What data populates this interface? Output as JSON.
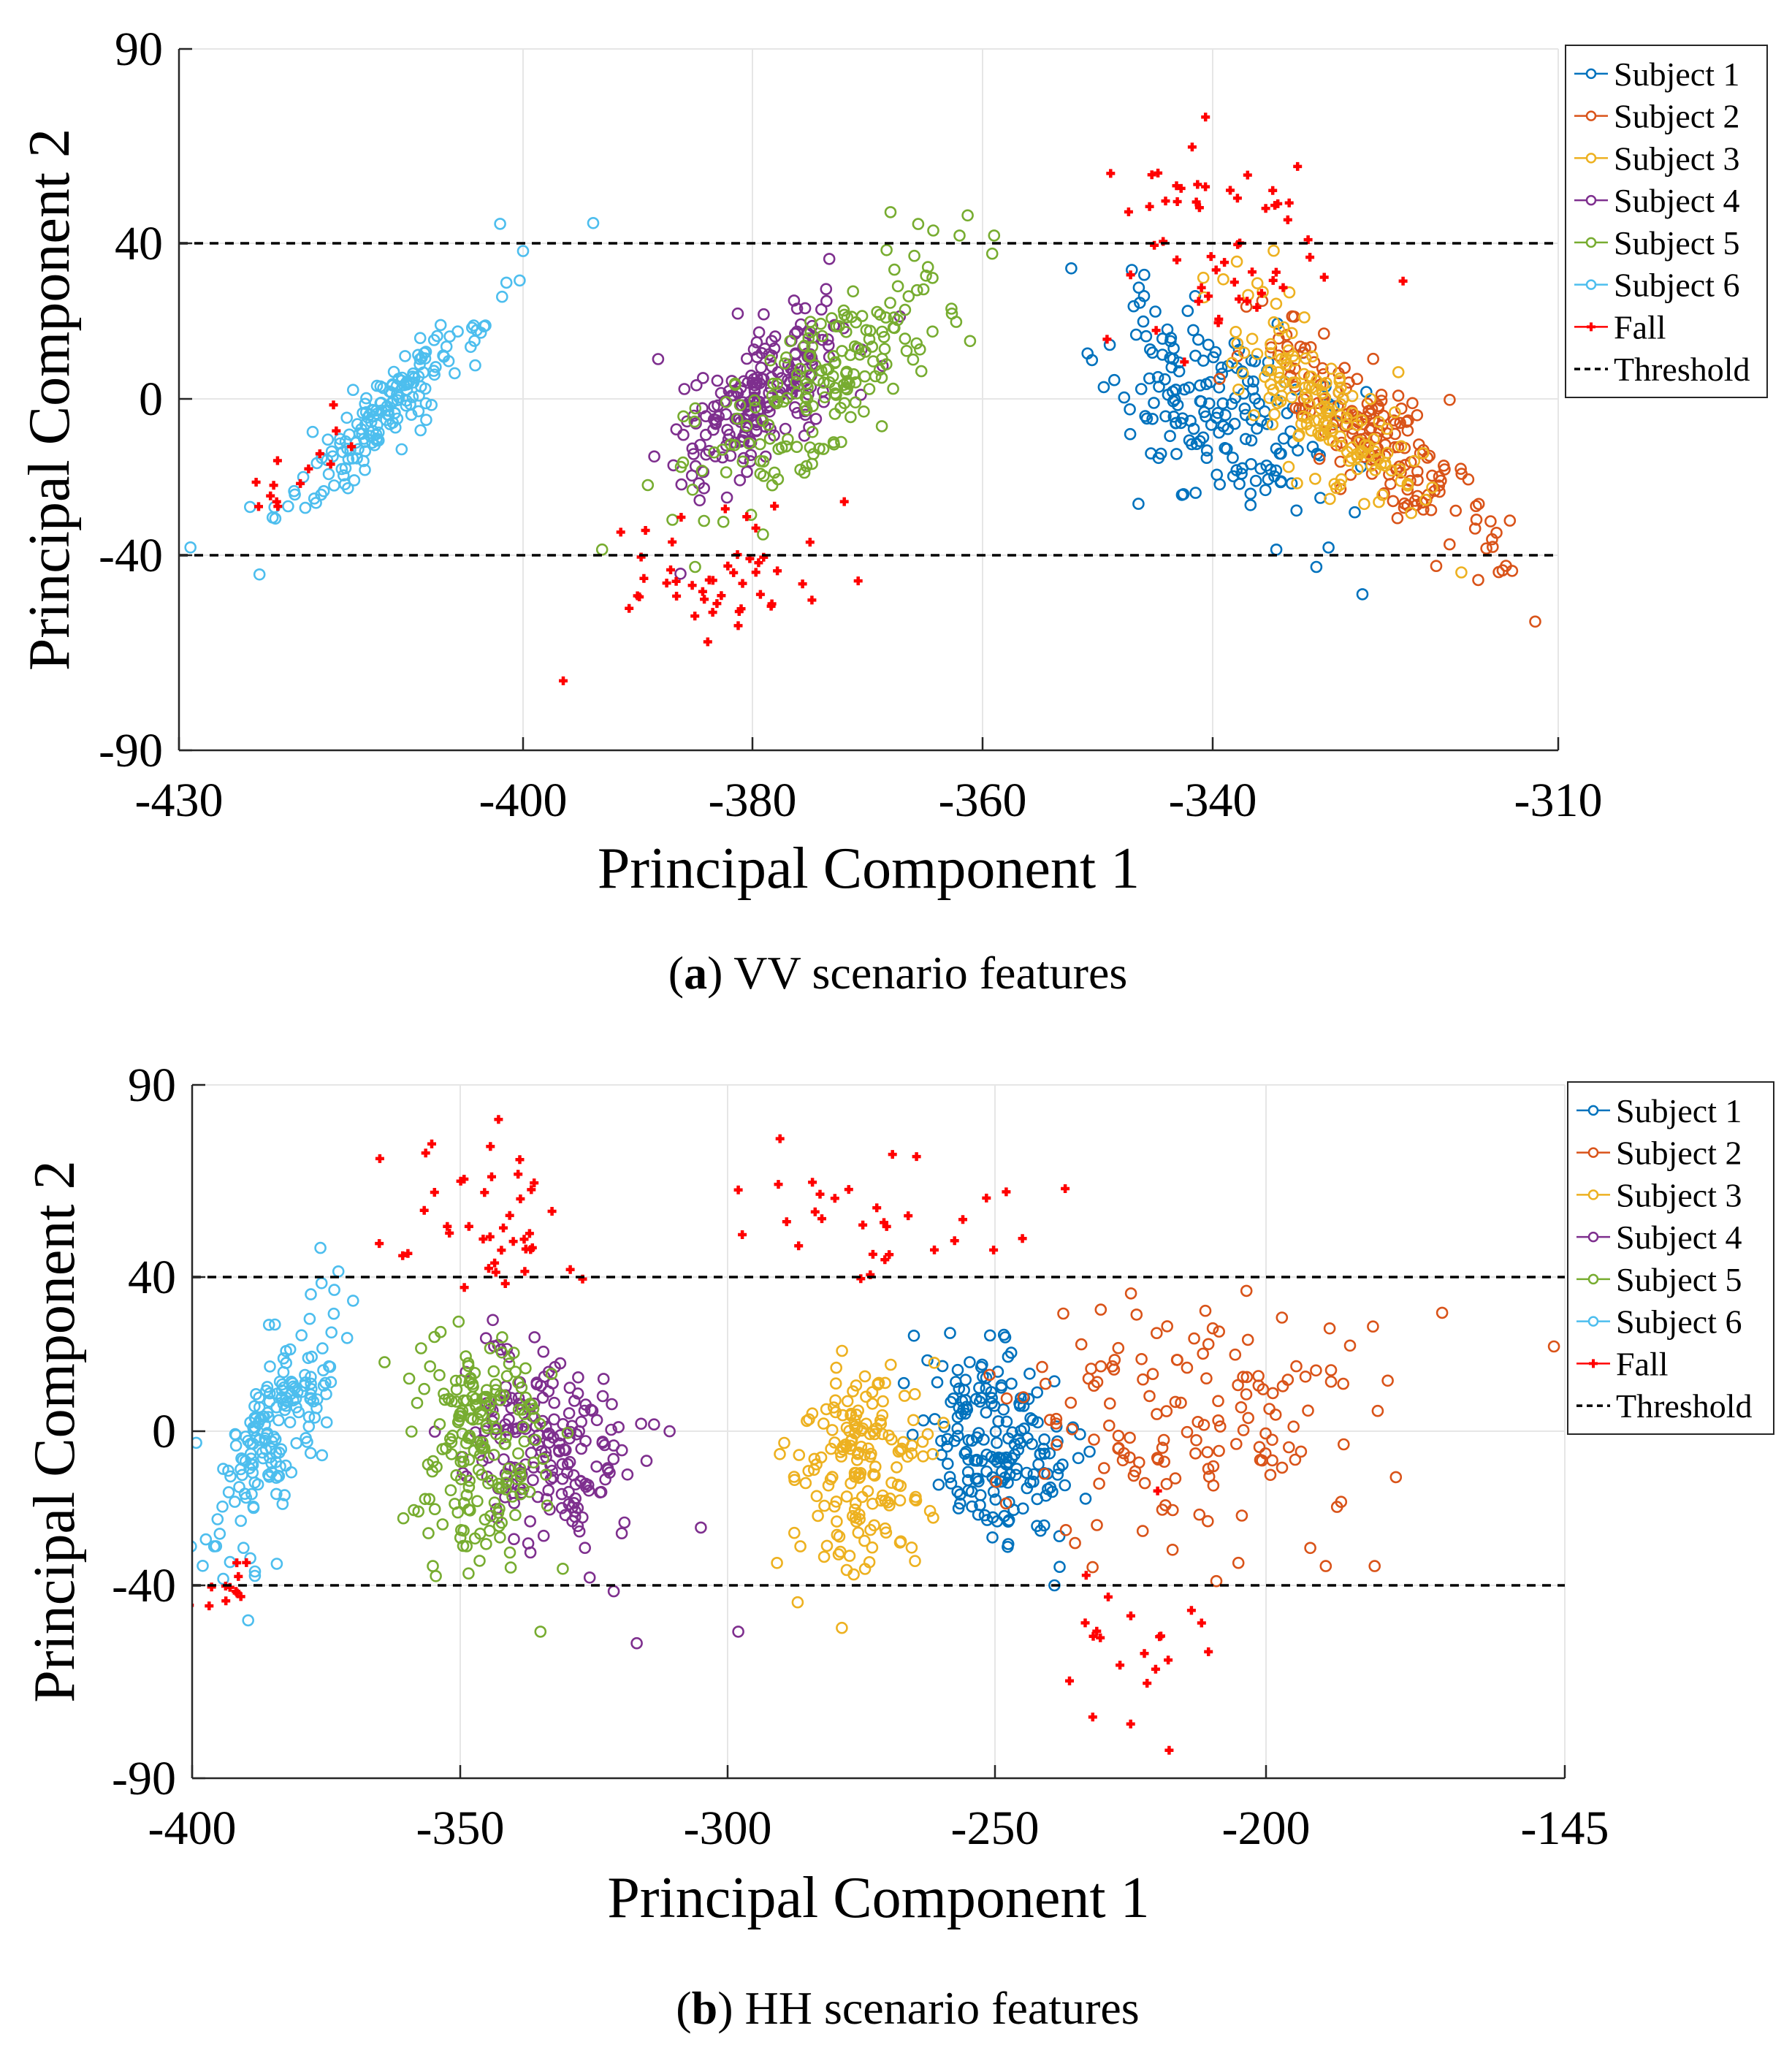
{
  "chart_data": [
    {
      "type": "scatter",
      "panel": "a",
      "caption_letter": "a",
      "caption_text": " VV scenario features",
      "xlabel": "Principal Component 1",
      "ylabel": "Principal Component 2",
      "xlim": [
        -430,
        -310
      ],
      "ylim": [
        -90,
        90
      ],
      "xticks": [
        -430,
        -400,
        -380,
        -360,
        -340,
        -310
      ],
      "yticks": [
        90,
        40,
        0,
        -40,
        -90
      ],
      "grid": true,
      "legend_position": "top-right",
      "threshold": [
        40,
        -40
      ],
      "threshold_label": "Threshold",
      "series": [
        {
          "name": "Subject 1",
          "color": "#0072BD",
          "marker": "circle",
          "cx": -340,
          "cy": -2,
          "sx": 4.6,
          "sy": 13,
          "rho": -0.45,
          "n": 180,
          "seed": 11,
          "extra": [
            [
              -331,
              -43
            ],
            [
              -327,
              -50
            ]
          ]
        },
        {
          "name": "Subject 2",
          "color": "#D95319",
          "marker": "circle",
          "cx": -326,
          "cy": -10,
          "sx": 5.2,
          "sy": 15,
          "rho": -0.85,
          "n": 170,
          "seed": 23,
          "extra": [
            [
              -312,
              -57
            ],
            [
              -314,
              -44
            ]
          ]
        },
        {
          "name": "Subject 3",
          "color": "#EDB120",
          "marker": "circle",
          "cx": -330,
          "cy": -3,
          "sx": 4.0,
          "sy": 14,
          "rho": -0.75,
          "n": 160,
          "seed": 37,
          "extra": []
        },
        {
          "name": "Subject 4",
          "color": "#7E2F8E",
          "marker": "circle",
          "cx": -379,
          "cy": 2,
          "sx": 3.6,
          "sy": 12,
          "rho": 0.6,
          "n": 200,
          "seed": 41,
          "extra": []
        },
        {
          "name": "Subject 5",
          "color": "#77AC30",
          "marker": "circle",
          "cx": -374,
          "cy": 4,
          "sx": 5.6,
          "sy": 15,
          "rho": 0.75,
          "n": 190,
          "seed": 53,
          "extra": [
            [
              -368,
              48
            ],
            [
              -359,
              42
            ],
            [
              -362,
              42
            ],
            [
              -385,
              -43
            ]
          ]
        },
        {
          "name": "Subject 6",
          "color": "#4DBEEE",
          "marker": "circle",
          "cx": -412,
          "cy": -3,
          "sx": 4.4,
          "sy": 13,
          "rho": 0.92,
          "n": 170,
          "seed": 67,
          "extra": [
            [
              -402,
              45
            ],
            [
              -400,
              38
            ],
            [
              -429,
              -38
            ]
          ]
        }
      ],
      "fall": {
        "name": "Fall",
        "color": "#FF0000",
        "marker": "plus",
        "groups": [
          {
            "cx": -339,
            "cy": 40,
            "sx": 4.8,
            "sy": 14,
            "rho": -0.2,
            "n": 55,
            "seed": 101
          },
          {
            "cx": -383,
            "cy": -45,
            "sx": 6.0,
            "sy": 9,
            "rho": 0.2,
            "n": 48,
            "seed": 113
          },
          {
            "cx": -420,
            "cy": -18,
            "sx": 3.0,
            "sy": 7,
            "rho": 0.7,
            "n": 14,
            "seed": 127
          }
        ]
      }
    },
    {
      "type": "scatter",
      "panel": "b",
      "caption_letter": "b",
      "caption_text": " HH scenario features",
      "xlabel": "Principal Component 1",
      "ylabel": "Principal Component 2",
      "xlim": [
        -400,
        -145
      ],
      "ylim": [
        -90,
        90
      ],
      "xticks": [
        -400,
        -350,
        -300,
        -250,
        -200,
        -145
      ],
      "yticks": [
        90,
        40,
        0,
        -40,
        -90
      ],
      "grid": true,
      "legend_position": "top-right",
      "threshold": [
        40,
        -40
      ],
      "threshold_label": "Threshold",
      "series": [
        {
          "name": "Subject 1",
          "color": "#0072BD",
          "marker": "circle",
          "cx": -249,
          "cy": -4,
          "sx": 6.5,
          "sy": 13,
          "rho": -0.15,
          "n": 190,
          "seed": 211,
          "extra": []
        },
        {
          "name": "Subject 2",
          "color": "#D95319",
          "marker": "circle",
          "cx": -215,
          "cy": 3,
          "sx": 16,
          "sy": 16,
          "rho": 0.1,
          "n": 150,
          "seed": 223,
          "extra": [
            [
              -147,
              22
            ],
            [
              -180,
              -35
            ],
            [
              -189,
              -35
            ]
          ]
        },
        {
          "name": "Subject 3",
          "color": "#EDB120",
          "marker": "circle",
          "cx": -276,
          "cy": -10,
          "sx": 6.5,
          "sy": 14,
          "rho": 0.0,
          "n": 170,
          "seed": 237,
          "extra": []
        },
        {
          "name": "Subject 4",
          "color": "#7E2F8E",
          "marker": "circle",
          "cx": -334,
          "cy": -6,
          "sx": 8.0,
          "sy": 13,
          "rho": -0.25,
          "n": 190,
          "seed": 241,
          "extra": [
            [
              -298,
              -52
            ],
            [
              -317,
              -55
            ],
            [
              -305,
              -25
            ]
          ]
        },
        {
          "name": "Subject 5",
          "color": "#77AC30",
          "marker": "circle",
          "cx": -347,
          "cy": -4,
          "sx": 6.0,
          "sy": 14,
          "rho": -0.1,
          "n": 190,
          "seed": 253,
          "extra": [
            [
              -335,
              -52
            ]
          ]
        },
        {
          "name": "Subject 6",
          "color": "#4DBEEE",
          "marker": "circle",
          "cx": -385,
          "cy": 0,
          "sx": 6.0,
          "sy": 16,
          "rho": 0.75,
          "n": 180,
          "seed": 267,
          "extra": []
        }
      ],
      "fall": {
        "name": "Fall",
        "color": "#FF0000",
        "marker": "plus",
        "groups": [
          {
            "cx": -348,
            "cy": 58,
            "sx": 10,
            "sy": 11,
            "rho": 0.0,
            "n": 42,
            "seed": 301
          },
          {
            "cx": -272,
            "cy": 55,
            "sx": 14,
            "sy": 10,
            "rho": 0.0,
            "n": 32,
            "seed": 313
          },
          {
            "cx": -222,
            "cy": -55,
            "sx": 10,
            "sy": 12,
            "rho": 0.0,
            "n": 22,
            "seed": 327
          },
          {
            "cx": -393,
            "cy": -42,
            "sx": 3.0,
            "sy": 6,
            "rho": 0.3,
            "n": 12,
            "seed": 331
          }
        ]
      }
    }
  ]
}
